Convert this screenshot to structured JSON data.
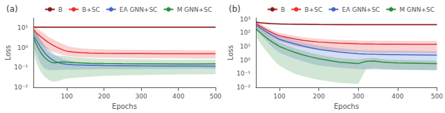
{
  "chart_data": [
    {
      "type": "line",
      "title": "(a)",
      "xlabel": "Epochs",
      "ylabel": "Loss",
      "x": [
        10,
        20,
        30,
        40,
        50,
        60,
        70,
        80,
        90,
        100,
        120,
        140,
        160,
        180,
        200,
        250,
        300,
        350,
        400,
        450,
        500
      ],
      "series": [
        {
          "name": "B",
          "color": "#8B1A1A",
          "values": [
            10.5,
            10.4,
            10.4,
            10.4,
            10.3,
            10.3,
            10.3,
            10.3,
            10.3,
            10.3,
            10.3,
            10.3,
            10.3,
            10.3,
            10.3,
            10.3,
            10.3,
            10.3,
            10.3,
            10.3,
            10.3
          ],
          "lo": [
            9.5,
            9.5,
            9.5,
            9.5,
            9.5,
            9.5,
            9.5,
            9.5,
            9.5,
            9.5,
            9.5,
            9.5,
            9.5,
            9.5,
            9.5,
            9.5,
            9.5,
            9.5,
            9.5,
            9.5,
            9.5
          ],
          "hi": [
            11.5,
            11.5,
            11.5,
            11.5,
            11.2,
            11.2,
            11.2,
            11.2,
            11.2,
            11.2,
            11.2,
            11.2,
            11.2,
            11.2,
            11.2,
            11.2,
            11.2,
            11.2,
            11.2,
            11.2,
            11.2
          ]
        },
        {
          "name": "B+SC",
          "color": "#E83030",
          "values": [
            8.0,
            5.0,
            3.5,
            2.5,
            1.8,
            1.4,
            1.1,
            0.9,
            0.75,
            0.65,
            0.58,
            0.55,
            0.53,
            0.52,
            0.51,
            0.5,
            0.495,
            0.492,
            0.49,
            0.488,
            0.487
          ],
          "lo": [
            5.0,
            2.5,
            1.5,
            1.0,
            0.8,
            0.65,
            0.55,
            0.48,
            0.42,
            0.38,
            0.35,
            0.33,
            0.32,
            0.31,
            0.3,
            0.3,
            0.29,
            0.29,
            0.29,
            0.28,
            0.28
          ],
          "hi": [
            13.0,
            9.0,
            6.5,
            5.0,
            3.5,
            2.8,
            2.2,
            1.8,
            1.5,
            1.2,
            1.0,
            0.9,
            0.85,
            0.82,
            0.8,
            0.78,
            0.76,
            0.75,
            0.74,
            0.73,
            0.72
          ]
        },
        {
          "name": "EA GNN+SC",
          "color": "#4169C8",
          "values": [
            4.0,
            2.0,
            1.0,
            0.55,
            0.35,
            0.25,
            0.195,
            0.168,
            0.152,
            0.143,
            0.136,
            0.132,
            0.129,
            0.127,
            0.125,
            0.122,
            0.12,
            0.119,
            0.118,
            0.117,
            0.116
          ],
          "lo": [
            1.0,
            0.4,
            0.15,
            0.09,
            0.075,
            0.073,
            0.074,
            0.075,
            0.076,
            0.077,
            0.078,
            0.079,
            0.08,
            0.081,
            0.082,
            0.083,
            0.084,
            0.085,
            0.086,
            0.087,
            0.088
          ],
          "hi": [
            9.0,
            5.0,
            2.5,
            1.4,
            0.9,
            0.6,
            0.42,
            0.33,
            0.27,
            0.23,
            0.2,
            0.18,
            0.17,
            0.165,
            0.16,
            0.155,
            0.15,
            0.148,
            0.146,
            0.144,
            0.142
          ]
        },
        {
          "name": "M GNN+SC",
          "color": "#2E8B3A",
          "values": [
            3.0,
            1.2,
            0.55,
            0.32,
            0.22,
            0.175,
            0.17,
            0.185,
            0.19,
            0.185,
            0.175,
            0.168,
            0.163,
            0.16,
            0.158,
            0.155,
            0.153,
            0.152,
            0.151,
            0.151,
            0.152
          ],
          "lo": [
            0.5,
            0.15,
            0.06,
            0.035,
            0.025,
            0.02,
            0.02,
            0.022,
            0.025,
            0.028,
            0.03,
            0.032,
            0.034,
            0.036,
            0.038,
            0.04,
            0.042,
            0.043,
            0.044,
            0.045,
            0.046
          ],
          "hi": [
            9.0,
            4.5,
            2.0,
            1.1,
            0.65,
            0.45,
            0.38,
            0.38,
            0.38,
            0.36,
            0.33,
            0.31,
            0.29,
            0.28,
            0.27,
            0.26,
            0.25,
            0.245,
            0.24,
            0.24,
            0.24
          ]
        }
      ],
      "xlim": [
        10,
        500
      ],
      "xticks": [
        100,
        200,
        300,
        400,
        500
      ],
      "ylim": [
        0.01,
        30
      ],
      "yticks": [
        {
          "value": 0.01,
          "label": "10⁻²"
        },
        {
          "value": 0.1,
          "label": "10⁻¹"
        },
        {
          "value": 1,
          "label": "10⁰"
        },
        {
          "value": 10,
          "label": "10¹"
        }
      ],
      "log": "y",
      "grid": false,
      "legend": "upper right"
    },
    {
      "type": "line",
      "title": "(b)",
      "xlabel": "Epochs",
      "ylabel": "Loss",
      "x": [
        40,
        50,
        60,
        70,
        80,
        90,
        100,
        120,
        140,
        160,
        180,
        200,
        250,
        300,
        320,
        340,
        360,
        380,
        400,
        450,
        500
      ],
      "series": [
        {
          "name": "B",
          "color": "#8B1A1A",
          "values": [
            600,
            550,
            510,
            490,
            470,
            455,
            445,
            430,
            420,
            415,
            410,
            405,
            400,
            395,
            394,
            393,
            393,
            393,
            393,
            392,
            392
          ],
          "lo": [
            500,
            460,
            430,
            415,
            400,
            388,
            380,
            368,
            360,
            355,
            352,
            349,
            345,
            342,
            341,
            341,
            341,
            341,
            340,
            340,
            340
          ],
          "hi": [
            700,
            640,
            590,
            565,
            540,
            522,
            510,
            492,
            480,
            475,
            468,
            461,
            455,
            448,
            447,
            445,
            445,
            445,
            446,
            444,
            444
          ]
        },
        {
          "name": "B+SC",
          "color": "#E83030",
          "values": [
            480,
            320,
            210,
            145,
            105,
            78,
            60,
            45,
            35,
            28,
            24,
            21,
            17.5,
            15.5,
            15.0,
            14.8,
            14.7,
            14.6,
            14.5,
            14.3,
            14.2
          ],
          "lo": [
            280,
            170,
            100,
            65,
            45,
            32,
            23,
            16,
            11,
            8.5,
            6.8,
            5.8,
            4.5,
            3.8,
            3.6,
            3.5,
            3.5,
            3.4,
            3.4,
            3.3,
            3.2
          ],
          "hi": [
            680,
            470,
            320,
            225,
            165,
            124,
            97,
            74,
            59,
            47.5,
            41,
            36,
            30,
            27,
            26.4,
            26.1,
            26.0,
            25.8,
            25.6,
            25.3,
            25.2
          ]
        },
        {
          "name": "EA GNN+SC",
          "color": "#4169C8",
          "values": [
            380,
            240,
            155,
            100,
            68,
            47,
            33,
            22,
            15,
            10.5,
            7.8,
            6.0,
            3.9,
            2.9,
            2.75,
            2.65,
            2.6,
            2.55,
            2.5,
            2.4,
            2.3
          ],
          "lo": [
            150,
            80,
            40,
            20,
            10,
            5.5,
            3.5,
            2.0,
            1.2,
            0.8,
            0.55,
            0.4,
            0.28,
            0.22,
            0.21,
            0.205,
            0.2,
            0.198,
            0.195,
            0.19,
            0.185
          ],
          "hi": [
            610,
            400,
            270,
            180,
            126,
            88.5,
            62.5,
            42,
            28.8,
            20.2,
            15.1,
            11.6,
            7.52,
            5.58,
            5.29,
            5.1,
            5.0,
            4.9,
            4.81,
            4.61,
            4.42
          ]
        },
        {
          "name": "M GNN+SC",
          "color": "#2E8B3A",
          "values": [
            200,
            110,
            62,
            37,
            23,
            15,
            10,
            5.8,
            3.6,
            2.4,
            1.7,
            1.25,
            0.72,
            0.56,
            0.8,
            0.85,
            0.72,
            0.65,
            0.62,
            0.58,
            0.55
          ],
          "lo": [
            50,
            20,
            8,
            3.5,
            1.5,
            0.7,
            0.4,
            0.18,
            0.1,
            0.065,
            0.048,
            0.036,
            0.022,
            0.018,
            0.22,
            0.26,
            0.23,
            0.21,
            0.2,
            0.19,
            0.18
          ],
          "hi": [
            350,
            200,
            116,
            70.5,
            44.5,
            29.3,
            19.6,
            11.4,
            7.1,
            4.74,
            3.35,
            2.46,
            1.42,
            1.1,
            1.38,
            1.44,
            1.21,
            1.09,
            1.04,
            0.97,
            0.92
          ]
        }
      ],
      "xlim": [
        40,
        500
      ],
      "xticks": [
        100,
        200,
        300,
        400,
        500
      ],
      "ylim": [
        0.01,
        1200
      ],
      "yticks": [
        {
          "value": 0.01,
          "label": "10⁻²"
        },
        {
          "value": 0.1,
          "label": "10⁻¹"
        },
        {
          "value": 1,
          "label": "10⁰"
        },
        {
          "value": 10,
          "label": "10¹"
        },
        {
          "value": 100,
          "label": "10²"
        },
        {
          "value": 1000,
          "label": "10³"
        }
      ],
      "log": "y",
      "grid": false,
      "legend": "upper right"
    }
  ]
}
